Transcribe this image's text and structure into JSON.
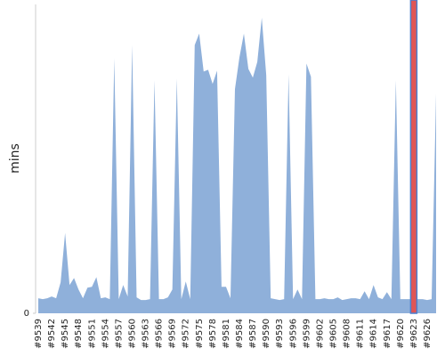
{
  "chart_data": {
    "type": "area",
    "y_label": "mins",
    "categories": [
      "#9539",
      null,
      null,
      "#9542",
      null,
      null,
      "#9545",
      null,
      null,
      "#9548",
      null,
      null,
      "#9551",
      null,
      null,
      "#9554",
      null,
      null,
      "#9557",
      null,
      null,
      "#9560",
      null,
      null,
      "#9563",
      null,
      null,
      "#9566",
      null,
      null,
      "#9569",
      null,
      null,
      "#9572",
      null,
      null,
      "#9575",
      null,
      null,
      "#9578",
      null,
      null,
      "#9581",
      null,
      null,
      "#9584",
      null,
      null,
      "#9587",
      null,
      null,
      "#9590",
      null,
      null,
      "#9593",
      null,
      null,
      "#9596",
      null,
      null,
      "#9599",
      null,
      null,
      "#9602",
      null,
      null,
      "#9605",
      null,
      null,
      "#9608",
      null,
      null,
      "#9611",
      null,
      null,
      "#9614",
      null,
      null,
      "#9617",
      null,
      null,
      "#9620",
      null,
      null,
      "#9623",
      null,
      null,
      "#9626",
      null,
      null
    ],
    "values": [
      1.7,
      1.6,
      1.7,
      1.9,
      1.7,
      3.5,
      9.1,
      3.2,
      4.0,
      2.7,
      1.7,
      2.9,
      3.0,
      4.1,
      1.7,
      1.8,
      1.6,
      28.9,
      1.6,
      3.2,
      1.9,
      30.4,
      1.8,
      1.5,
      1.5,
      1.6,
      26.4,
      1.6,
      1.6,
      1.8,
      2.7,
      26.6,
      1.6,
      3.6,
      1.6,
      30.4,
      31.7,
      27.4,
      27.6,
      26.0,
      27.5,
      3.0,
      3.0,
      1.7,
      25.4,
      29.0,
      31.7,
      27.7,
      26.7,
      28.5,
      33.5,
      27.0,
      1.7,
      1.6,
      1.5,
      1.6,
      27.1,
      1.6,
      2.7,
      1.6,
      28.3,
      26.8,
      1.6,
      1.6,
      1.7,
      1.6,
      1.6,
      1.8,
      1.5,
      1.6,
      1.7,
      1.7,
      1.6,
      2.5,
      1.6,
      3.2,
      1.8,
      1.6,
      2.4,
      1.6,
      26.4,
      1.6,
      1.6,
      1.6,
      1.6,
      1.6,
      1.6,
      1.5,
      1.6,
      24.9
    ],
    "color": "#8fb0da",
    "highlight": 84,
    "highlight_color": "#e05555",
    "ylim": [
      0,
      35
    ],
    "yticks": [
      0
    ]
  }
}
